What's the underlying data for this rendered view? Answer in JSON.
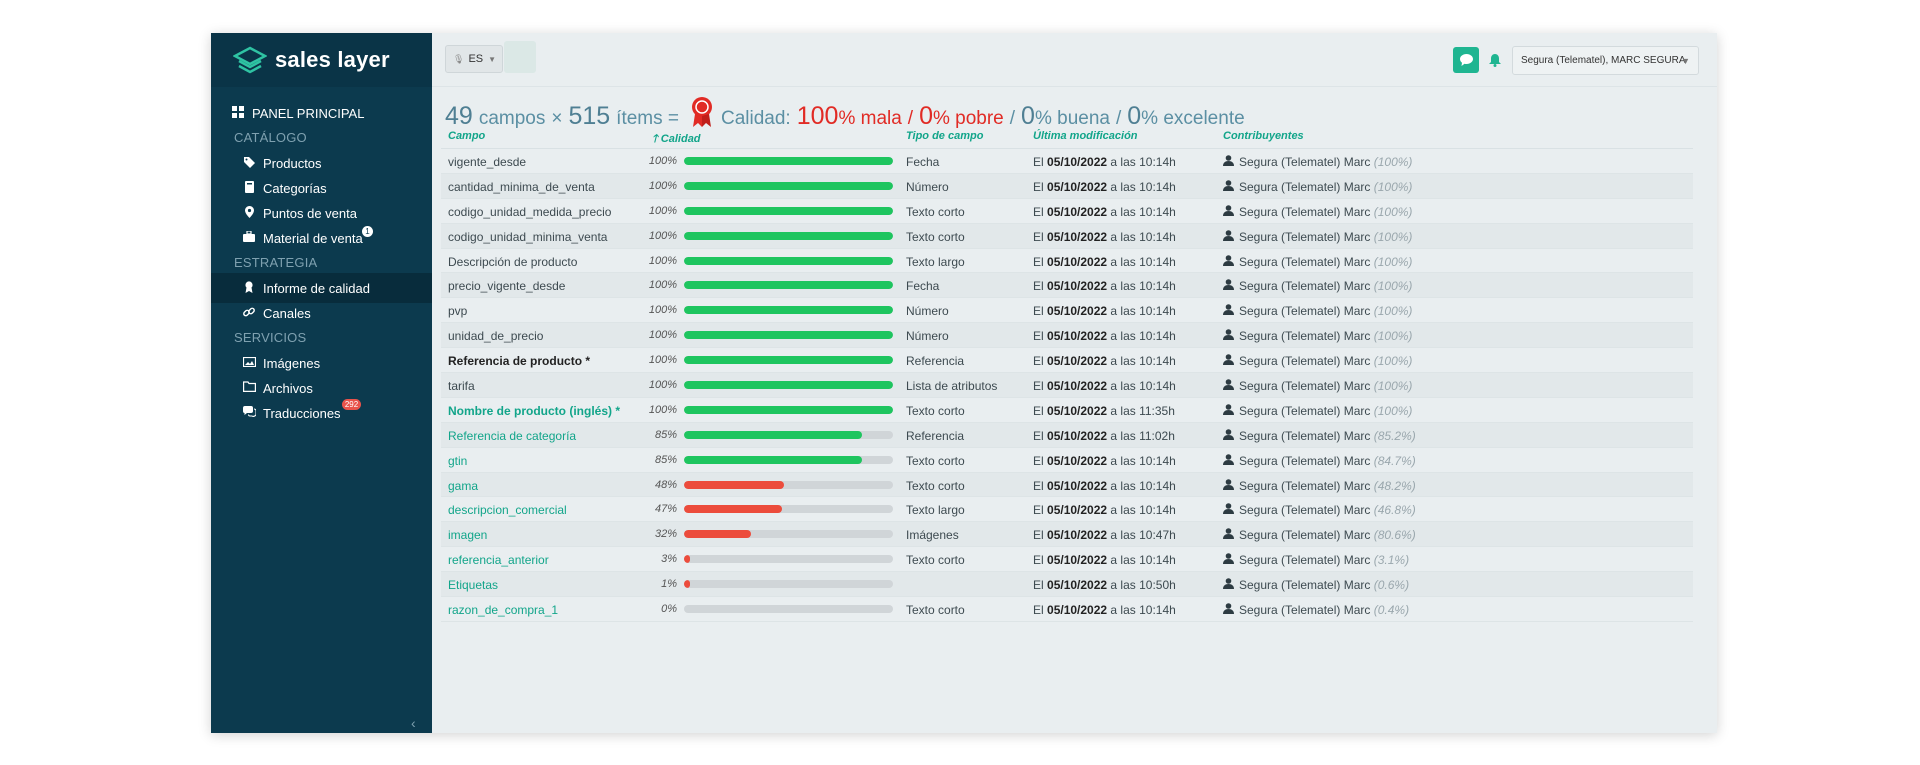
{
  "logo": {
    "text": "sales layer"
  },
  "sidebar": {
    "panel_principal": "PANEL PRINCIPAL",
    "sections": {
      "catalogo": "CATÁLOGO",
      "estrategia": "ESTRATEGIA",
      "servicios": "SERVICIOS"
    },
    "items": {
      "productos": "Productos",
      "categorias": "Categorías",
      "puntos_de_venta": "Puntos de venta",
      "material_de_venta": "Material de venta",
      "informe_de_calidad": "Informe de calidad",
      "canales": "Canales",
      "imagenes": "Imágenes",
      "archivos": "Archivos",
      "traducciones": "Traducciones"
    },
    "badges": {
      "material_de_venta": "1",
      "traducciones": "292"
    },
    "colors": {
      "background": "#0c3a4e",
      "active": "#082c3c",
      "badge_red": "#e9534b"
    }
  },
  "topbar": {
    "lang": "ES",
    "user": "Segura (Telematel), MARC SEGURA",
    "colors": {
      "accent": "#1fb591"
    }
  },
  "summary": {
    "fields": "49",
    "fields_label": "campos",
    "times": "×",
    "items": "515",
    "items_label": "ítems =",
    "quality_label": "Calidad:",
    "mala_pct": "100",
    "mala_label": "% mala",
    "sep": "/",
    "pobre_pct": "0",
    "pobre_label": "% pobre",
    "buena_pct": "0",
    "buena_label": "% buena",
    "excelente_pct": "0",
    "excelente_label": "% excelente"
  },
  "table": {
    "headers": {
      "campo": "Campo",
      "calidad": "Calidad",
      "tipo": "Tipo de campo",
      "ultima": "Última modificación",
      "contribuyentes": "Contribuyentes"
    },
    "colors": {
      "good": "#1ec55f",
      "bad": "#ec4c3c",
      "track": "#d0d5d8",
      "green_text": "#12a58a"
    },
    "rows": [
      {
        "name": "vigente_desde",
        "style": "normal",
        "pct": "100%",
        "fill": 1.0,
        "color": "good",
        "type": "Fecha",
        "date_prefix": "El ",
        "date": "05/10/2022",
        "time": " a las 10:14h",
        "contrib": "Segura (Telematel) Marc",
        "share": " (100%)"
      },
      {
        "name": "cantidad_minima_de_venta",
        "style": "normal",
        "pct": "100%",
        "fill": 1.0,
        "color": "good",
        "type": "Número",
        "date_prefix": "El ",
        "date": "05/10/2022",
        "time": " a las 10:14h",
        "contrib": "Segura (Telematel) Marc",
        "share": " (100%)"
      },
      {
        "name": "codigo_unidad_medida_precio",
        "style": "normal",
        "pct": "100%",
        "fill": 1.0,
        "color": "good",
        "type": "Texto corto",
        "date_prefix": "El ",
        "date": "05/10/2022",
        "time": " a las 10:14h",
        "contrib": "Segura (Telematel) Marc",
        "share": " (100%)"
      },
      {
        "name": "codigo_unidad_minima_venta",
        "style": "normal",
        "pct": "100%",
        "fill": 1.0,
        "color": "good",
        "type": "Texto corto",
        "date_prefix": "El ",
        "date": "05/10/2022",
        "time": " a las 10:14h",
        "contrib": "Segura (Telematel) Marc",
        "share": " (100%)"
      },
      {
        "name": "Descripción de producto",
        "style": "normal",
        "pct": "100%",
        "fill": 1.0,
        "color": "good",
        "type": "Texto largo",
        "date_prefix": "El ",
        "date": "05/10/2022",
        "time": " a las 10:14h",
        "contrib": "Segura (Telematel) Marc",
        "share": " (100%)"
      },
      {
        "name": "precio_vigente_desde",
        "style": "normal",
        "pct": "100%",
        "fill": 1.0,
        "color": "good",
        "type": "Fecha",
        "date_prefix": "El ",
        "date": "05/10/2022",
        "time": " a las 10:14h",
        "contrib": "Segura (Telematel) Marc",
        "share": " (100%)"
      },
      {
        "name": "pvp",
        "style": "normal",
        "pct": "100%",
        "fill": 1.0,
        "color": "good",
        "type": "Número",
        "date_prefix": "El ",
        "date": "05/10/2022",
        "time": " a las 10:14h",
        "contrib": "Segura (Telematel) Marc",
        "share": " (100%)"
      },
      {
        "name": "unidad_de_precio",
        "style": "normal",
        "pct": "100%",
        "fill": 1.0,
        "color": "good",
        "type": "Número",
        "date_prefix": "El ",
        "date": "05/10/2022",
        "time": " a las 10:14h",
        "contrib": "Segura (Telematel) Marc",
        "share": " (100%)"
      },
      {
        "name": "Referencia de producto *",
        "style": "bold",
        "pct": "100%",
        "fill": 1.0,
        "color": "good",
        "type": "Referencia",
        "date_prefix": "El ",
        "date": "05/10/2022",
        "time": " a las 10:14h",
        "contrib": "Segura (Telematel) Marc",
        "share": " (100%)"
      },
      {
        "name": "tarifa",
        "style": "normal",
        "pct": "100%",
        "fill": 1.0,
        "color": "good",
        "type": "Lista de atributos",
        "date_prefix": "El ",
        "date": "05/10/2022",
        "time": " a las 10:14h",
        "contrib": "Segura (Telematel) Marc",
        "share": " (100%)"
      },
      {
        "name": "Nombre de producto (inglés) *",
        "style": "green-bold",
        "pct": "100%",
        "fill": 1.0,
        "color": "good",
        "type": "Texto corto",
        "date_prefix": "El ",
        "date": "05/10/2022",
        "time": " a las 11:35h",
        "contrib": "Segura (Telematel) Marc",
        "share": " (100%)"
      },
      {
        "name": "Referencia de categoría",
        "style": "green",
        "pct": "85%",
        "fill": 0.85,
        "color": "good",
        "type": "Referencia",
        "date_prefix": "El ",
        "date": "05/10/2022",
        "time": " a las 11:02h",
        "contrib": "Segura (Telematel) Marc",
        "share": " (85.2%)"
      },
      {
        "name": "gtin",
        "style": "green",
        "pct": "85%",
        "fill": 0.85,
        "color": "good",
        "type": "Texto corto",
        "date_prefix": "El ",
        "date": "05/10/2022",
        "time": " a las 10:14h",
        "contrib": "Segura (Telematel) Marc",
        "share": " (84.7%)"
      },
      {
        "name": "gama",
        "style": "green",
        "pct": "48%",
        "fill": 0.48,
        "color": "bad",
        "type": "Texto corto",
        "date_prefix": "El ",
        "date": "05/10/2022",
        "time": " a las 10:14h",
        "contrib": "Segura (Telematel) Marc",
        "share": " (48.2%)"
      },
      {
        "name": "descripcion_comercial",
        "style": "green",
        "pct": "47%",
        "fill": 0.47,
        "color": "bad",
        "type": "Texto largo",
        "date_prefix": "El ",
        "date": "05/10/2022",
        "time": " a las 10:14h",
        "contrib": "Segura (Telematel) Marc",
        "share": " (46.8%)"
      },
      {
        "name": "imagen",
        "style": "green",
        "pct": "32%",
        "fill": 0.32,
        "color": "bad",
        "type": "Imágenes",
        "date_prefix": "El ",
        "date": "05/10/2022",
        "time": " a las 10:47h",
        "contrib": "Segura (Telematel) Marc",
        "share": " (80.6%)"
      },
      {
        "name": "referencia_anterior",
        "style": "green",
        "pct": "3%",
        "fill": 0.03,
        "color": "bad",
        "type": "Texto corto",
        "date_prefix": "El ",
        "date": "05/10/2022",
        "time": " a las 10:14h",
        "contrib": "Segura (Telematel) Marc",
        "share": " (3.1%)"
      },
      {
        "name": "Etiquetas",
        "style": "green",
        "pct": "1%",
        "fill": 0.01,
        "color": "bad",
        "type": "",
        "date_prefix": "El ",
        "date": "05/10/2022",
        "time": " a las 10:50h",
        "contrib": "Segura (Telematel) Marc",
        "share": " (0.6%)"
      },
      {
        "name": "razon_de_compra_1",
        "style": "green",
        "pct": "0%",
        "fill": 0.0,
        "color": "bad",
        "type": "Texto corto",
        "date_prefix": "El ",
        "date": "05/10/2022",
        "time": " a las 10:14h",
        "contrib": "Segura (Telematel) Marc",
        "share": " (0.4%)"
      }
    ]
  }
}
